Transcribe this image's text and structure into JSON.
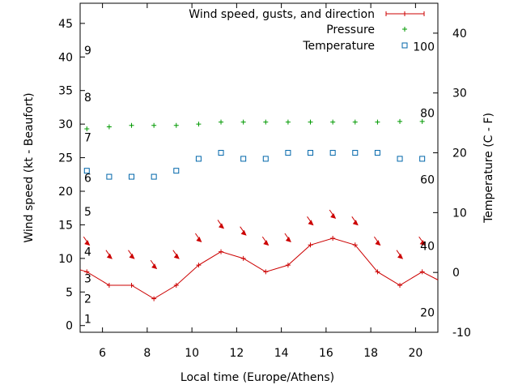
{
  "chart_data": {
    "type": "line",
    "xlabel": "Local time (Europe/Athens)",
    "ylabel_left": "Wind speed (kt - Beaufort)",
    "ylabel_right": "Temperature (C - F)",
    "xlim": [
      5,
      21
    ],
    "ylim_left": [
      -1,
      48
    ],
    "ylim_right": [
      -10,
      45
    ],
    "x_ticks": [
      "6",
      "8",
      "10",
      "12",
      "14",
      "16",
      "18",
      "20"
    ],
    "y_ticks_left": [
      "0",
      "5",
      "10",
      "15",
      "20",
      "25",
      "30",
      "35",
      "40",
      "45"
    ],
    "y_ticks_right": [
      "-10",
      "0",
      "10",
      "20",
      "30",
      "40"
    ],
    "beaufort_labels": [
      {
        "label": "1",
        "kt": 1
      },
      {
        "label": "2",
        "kt": 4
      },
      {
        "label": "3",
        "kt": 7
      },
      {
        "label": "4",
        "kt": 11
      },
      {
        "label": "5",
        "kt": 17
      },
      {
        "label": "6",
        "kt": 22
      },
      {
        "label": "7",
        "kt": 28
      },
      {
        "label": "8",
        "kt": 34
      },
      {
        "label": "9",
        "kt": 41
      }
    ],
    "fahrenheit_labels": [
      {
        "label": "20",
        "f": 20
      },
      {
        "label": "40",
        "f": 40
      },
      {
        "label": "60",
        "f": 60
      },
      {
        "label": "80",
        "f": 80
      },
      {
        "label": "100",
        "f": 100
      }
    ],
    "legend": {
      "position": "top-right",
      "entries": [
        "Wind speed, gusts, and direction",
        "Pressure",
        "Temperature"
      ]
    },
    "series": [
      {
        "name": "Wind speed, gusts, and direction",
        "color": "#cc0000",
        "x": [
          5,
          5.3,
          6.3,
          7.3,
          8.3,
          9.3,
          10.3,
          11.3,
          12.3,
          13.3,
          14.3,
          15.3,
          16.3,
          17.3,
          18.3,
          19.3,
          20.3,
          21
        ],
        "values": [
          8.3,
          8,
          6,
          6,
          4,
          6,
          9,
          11,
          10,
          8,
          9,
          12,
          13,
          12,
          8,
          6,
          8,
          6.8
        ]
      },
      {
        "name": "Wind direction arrows",
        "color": "#cc0000",
        "x": [
          5.3,
          6.3,
          7.3,
          8.3,
          9.3,
          10.3,
          11.3,
          12.3,
          13.3,
          14.3,
          15.3,
          16.3,
          17.3,
          18.3,
          19.3,
          20.3
        ],
        "values": [
          12.5,
          10.5,
          10.5,
          9,
          10.5,
          13,
          15,
          14,
          12.5,
          13,
          15.5,
          16.5,
          15.5,
          12.5,
          10.5,
          12.5
        ]
      },
      {
        "name": "Pressure",
        "color": "#009900",
        "x": [
          5.3,
          6.3,
          7.3,
          8.3,
          9.3,
          10.3,
          11.3,
          12.3,
          13.3,
          14.3,
          15.3,
          16.3,
          17.3,
          18.3,
          19.3,
          20.3
        ],
        "values": [
          29.3,
          29.6,
          29.8,
          29.8,
          29.8,
          30,
          30.3,
          30.3,
          30.3,
          30.3,
          30.3,
          30.3,
          30.3,
          30.3,
          30.4,
          30.4
        ]
      },
      {
        "name": "Temperature",
        "color": "#0066aa",
        "x": [
          5.3,
          6.3,
          7.3,
          8.3,
          9.3,
          10.3,
          11.3,
          12.3,
          13.3,
          14.3,
          15.3,
          16.3,
          17.3,
          18.3,
          19.3,
          20.3
        ],
        "values": [
          17,
          16,
          16,
          16,
          17,
          19,
          20,
          19,
          19,
          20,
          20,
          20,
          20,
          20,
          19,
          19
        ]
      }
    ]
  }
}
